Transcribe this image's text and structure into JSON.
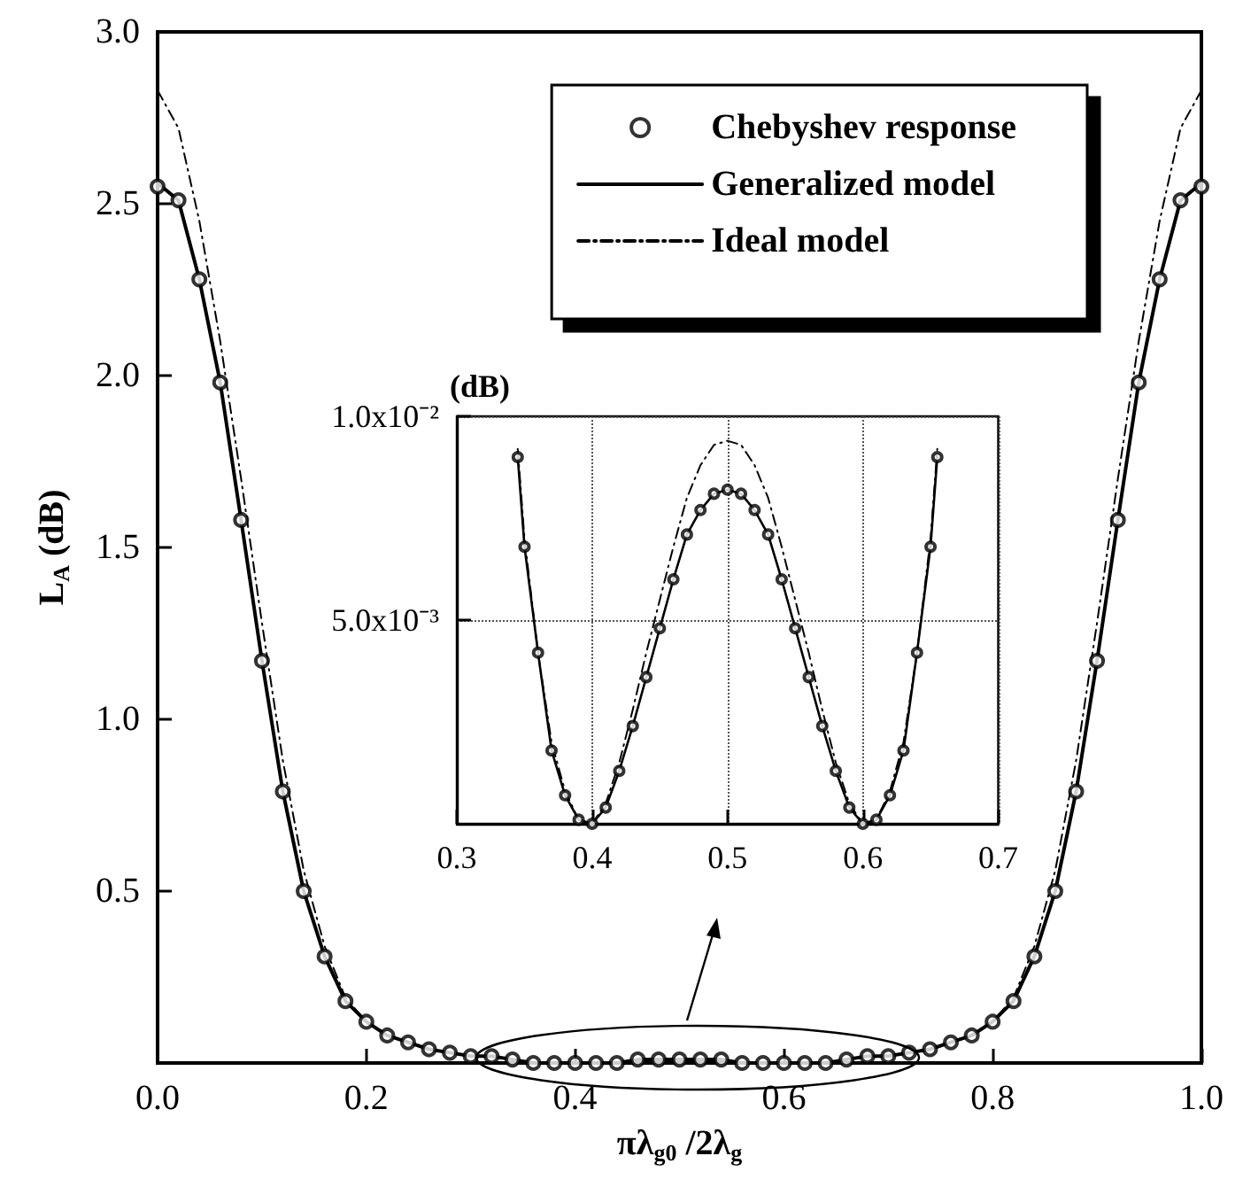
{
  "chart_data": [
    {
      "type": "line",
      "xlabel": "πλ$_{g0}$ /2λ$_{g}$",
      "ylabel": "L$_{A}$ (dB)",
      "x": [
        0,
        0.02,
        0.04,
        0.06,
        0.08,
        0.1,
        0.12,
        0.14,
        0.16,
        0.18,
        0.2,
        0.22,
        0.24,
        0.26,
        0.28,
        0.3,
        0.32,
        0.34,
        0.36,
        0.38,
        0.4,
        0.42,
        0.44,
        0.46,
        0.48,
        0.5,
        0.52,
        0.54,
        0.56,
        0.58,
        0.6,
        0.62,
        0.64,
        0.66,
        0.68,
        0.7,
        0.72,
        0.74,
        0.76,
        0.78,
        0.8,
        0.82,
        0.84,
        0.86,
        0.88,
        0.9,
        0.92,
        0.94,
        0.96,
        0.98,
        1.0
      ],
      "series": [
        {
          "name": "Chebyshev response",
          "type": "scatter",
          "marker": "circle",
          "color": "#000000",
          "values": [
            2.55,
            2.51,
            2.28,
            1.98,
            1.58,
            1.17,
            0.79,
            0.5,
            0.31,
            0.18,
            0.12,
            0.08,
            0.06,
            0.04,
            0.03,
            0.02,
            0.02,
            0.01,
            0,
            0,
            0,
            0,
            0,
            0.01,
            0.01,
            0.01,
            0.01,
            0.01,
            0,
            0,
            0,
            0,
            0,
            0.01,
            0.02,
            0.02,
            0.03,
            0.04,
            0.06,
            0.08,
            0.12,
            0.18,
            0.31,
            0.5,
            0.79,
            1.17,
            1.58,
            1.98,
            2.28,
            2.51,
            2.55
          ]
        },
        {
          "name": "Generalized model",
          "type": "line",
          "color": "#000000",
          "values": [
            2.56,
            2.51,
            2.28,
            1.98,
            1.58,
            1.17,
            0.79,
            0.5,
            0.31,
            0.18,
            0.12,
            0.08,
            0.06,
            0.04,
            0.03,
            0.02,
            0.02,
            0.01,
            0,
            0,
            0,
            0,
            0,
            0.01,
            0.01,
            0.01,
            0.01,
            0.01,
            0,
            0,
            0,
            0,
            0,
            0.01,
            0.02,
            0.02,
            0.03,
            0.04,
            0.06,
            0.08,
            0.12,
            0.18,
            0.31,
            0.5,
            0.79,
            1.17,
            1.58,
            1.98,
            2.28,
            2.51,
            2.56
          ]
        },
        {
          "name": "Ideal model",
          "type": "line",
          "line_style": "dashed",
          "color": "#000000",
          "values": [
            2.83,
            2.72,
            2.45,
            2.1,
            1.7,
            1.28,
            0.88,
            0.56,
            0.34,
            0.19,
            0.12,
            0.08,
            0.06,
            0.04,
            0.03,
            0.02,
            0.02,
            0.01,
            0,
            0,
            0,
            0,
            0,
            0.01,
            0.01,
            0.01,
            0.01,
            0.01,
            0,
            0,
            0,
            0,
            0,
            0.01,
            0.02,
            0.02,
            0.03,
            0.04,
            0.06,
            0.08,
            0.12,
            0.19,
            0.34,
            0.56,
            0.88,
            1.28,
            1.7,
            2.1,
            2.45,
            2.72,
            2.83
          ]
        }
      ],
      "xlim": [
        0,
        1
      ],
      "xticks": [
        {
          "value": 0,
          "label": "0.0"
        },
        {
          "value": 0.2,
          "label": "0.2"
        },
        {
          "value": 0.4,
          "label": "0.4"
        },
        {
          "value": 0.6,
          "label": "0.6"
        },
        {
          "value": 0.8,
          "label": "0.8"
        },
        {
          "value": 1,
          "label": "1.0"
        }
      ],
      "ylim": [
        0,
        3
      ],
      "yticks": [
        {
          "value": 0.5,
          "label": "0.5"
        },
        {
          "value": 1,
          "label": "1.0"
        },
        {
          "value": 1.5,
          "label": "1.5"
        },
        {
          "value": 2,
          "label": "2.0"
        },
        {
          "value": 2.5,
          "label": "2.5"
        },
        {
          "value": 3,
          "label": "3.0"
        }
      ],
      "grid": false,
      "legend": "top right"
    },
    {
      "type": "line",
      "ylabel": "(dB)",
      "x": [
        0.345,
        0.35,
        0.36,
        0.37,
        0.38,
        0.39,
        0.4,
        0.41,
        0.42,
        0.43,
        0.44,
        0.45,
        0.46,
        0.47,
        0.48,
        0.49,
        0.5,
        0.51,
        0.52,
        0.53,
        0.54,
        0.55,
        0.56,
        0.57,
        0.58,
        0.59,
        0.6,
        0.61,
        0.62,
        0.63,
        0.64,
        0.65,
        0.655
      ],
      "series": [
        {
          "type": "scatter",
          "marker": "circle",
          "color": "#000000",
          "values": [
            0.009,
            0.0068,
            0.0042,
            0.0018,
            0.0007,
            0.0001,
            0,
            0.0004,
            0.0013,
            0.0024,
            0.0036,
            0.0048,
            0.006,
            0.0071,
            0.0077,
            0.0081,
            0.0082,
            0.0081,
            0.0077,
            0.0071,
            0.006,
            0.0048,
            0.0036,
            0.0024,
            0.0013,
            0.0004,
            0,
            0.0001,
            0.0007,
            0.0018,
            0.0042,
            0.0068,
            0.009
          ]
        },
        {
          "type": "line",
          "color": "#000000",
          "values": [
            0.009,
            0.0068,
            0.0042,
            0.0018,
            0.0007,
            0.0001,
            0,
            0.0004,
            0.0013,
            0.0024,
            0.0036,
            0.0048,
            0.006,
            0.0071,
            0.0077,
            0.0081,
            0.0082,
            0.0081,
            0.0077,
            0.0071,
            0.006,
            0.0048,
            0.0036,
            0.0024,
            0.0013,
            0.0004,
            0,
            0.0001,
            0.0007,
            0.0018,
            0.0042,
            0.0068,
            0.009
          ]
        },
        {
          "type": "line",
          "line_style": "dashed",
          "color": "#000000",
          "values": [
            0.0092,
            0.007,
            0.0042,
            0.002,
            0.0008,
            0.0001,
            0,
            0.0005,
            0.0015,
            0.0028,
            0.0042,
            0.0055,
            0.0068,
            0.008,
            0.0088,
            0.0093,
            0.0094,
            0.0093,
            0.0088,
            0.008,
            0.0068,
            0.0055,
            0.0042,
            0.0028,
            0.0015,
            0.0005,
            0,
            0.0001,
            0.0008,
            0.002,
            0.0042,
            0.007,
            0.0092
          ]
        }
      ],
      "xlim": [
        0.3,
        0.7
      ],
      "xticks": [
        0.3,
        0.4,
        0.5,
        0.6,
        0.7
      ],
      "ylim": [
        0,
        0.01
      ],
      "yticks": [
        {
          "value": 0.005,
          "label": "5.0x10⁻³"
        },
        {
          "value": 0.01,
          "label": "1.0x10⁻²"
        }
      ],
      "grid": true,
      "legend": false
    }
  ]
}
